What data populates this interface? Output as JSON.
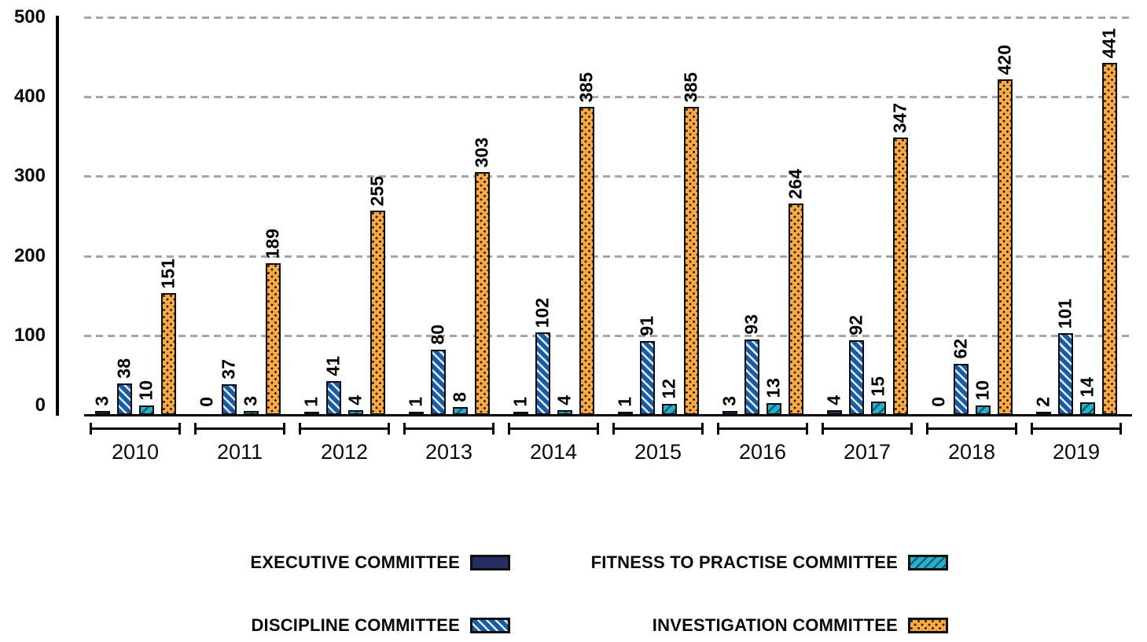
{
  "chart_data": {
    "type": "bar",
    "title": "",
    "categories": [
      "2010",
      "2011",
      "2012",
      "2013",
      "2014",
      "2015",
      "2016",
      "2017",
      "2018",
      "2019"
    ],
    "series": [
      {
        "name": "EXECUTIVE COMMITTEE",
        "color": "#252E5E",
        "pattern": "solid",
        "values": [
          3,
          0,
          1,
          1,
          1,
          1,
          3,
          4,
          0,
          2
        ]
      },
      {
        "name": "DISCIPLINE COMMITTEE",
        "color": "#1A5CA4",
        "pattern": "diagonal-down",
        "values": [
          38,
          37,
          41,
          80,
          102,
          91,
          93,
          92,
          62,
          101
        ]
      },
      {
        "name": "FITNESS TO PRACTISE COMMITTEE",
        "color": "#28B0CB",
        "pattern": "diagonal-up",
        "values": [
          10,
          3,
          4,
          8,
          4,
          12,
          13,
          15,
          10,
          14
        ]
      },
      {
        "name": "INVESTIGATION COMMITTEE",
        "color": "#F9A846",
        "pattern": "dots",
        "values": [
          151,
          189,
          255,
          303,
          385,
          385,
          264,
          347,
          420,
          441
        ]
      }
    ],
    "y_axis": {
      "min": 0,
      "max": 500,
      "ticks": [
        0,
        100,
        200,
        300,
        400,
        500
      ]
    },
    "grid": "horizontal-dashed",
    "value_labels": "rotated-90-above-bars",
    "legend_position": "bottom",
    "legend_rows": [
      [
        0,
        2
      ],
      [
        1,
        3
      ]
    ]
  },
  "colors": {
    "background": "#ffffff",
    "grid": "#a6a6a6",
    "axis": "#000000",
    "text": "#0a0a0a"
  }
}
